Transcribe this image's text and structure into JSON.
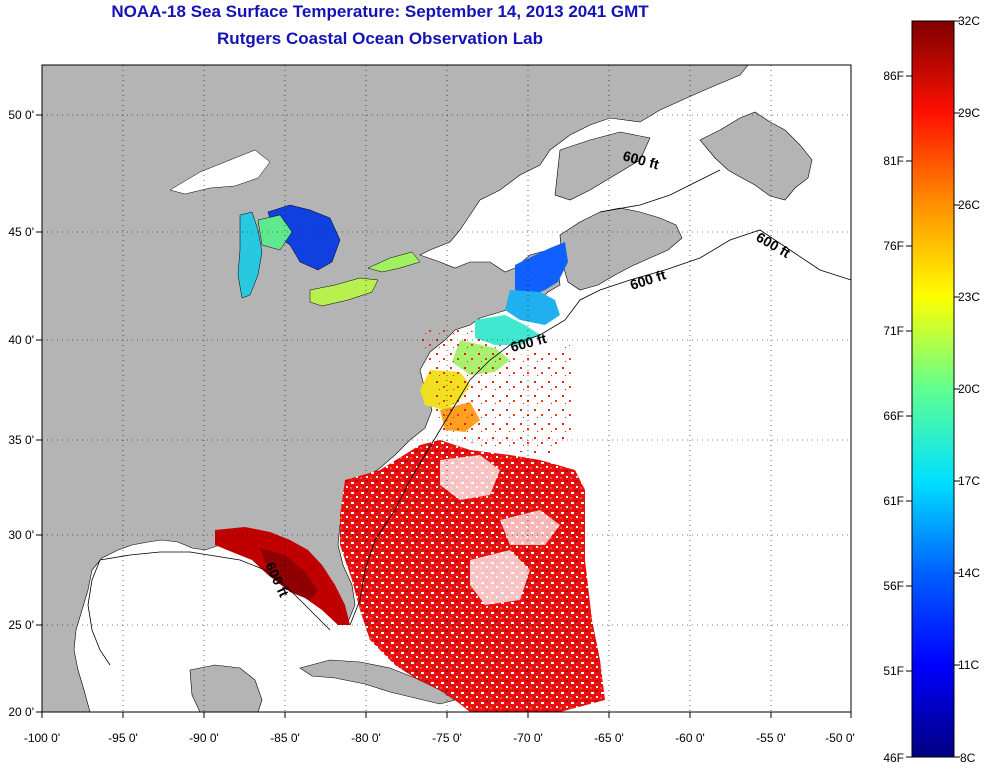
{
  "title": {
    "line1": "NOAA-18 Sea Surface Temperature:  September 14, 2013 2041 GMT",
    "line2": "Rutgers Coastal Ocean Observation Lab"
  },
  "x_ticks": [
    "-100 0'",
    "-95 0'",
    "-90 0'",
    "-85 0'",
    "-80 0'",
    "-75 0'",
    "-70 0'",
    "-65 0'",
    "-60 0'",
    "-55 0'",
    "-50 0'"
  ],
  "y_ticks": [
    "20 0'",
    "25 0'",
    "30 0'",
    "35 0'",
    "40 0'",
    "45 0'",
    "50 0'"
  ],
  "depth_labels": [
    "600 ft",
    "600 ft",
    "600 ft",
    "600 ft",
    "600 ft"
  ],
  "colorbar": {
    "celsius": [
      "32C",
      "29C",
      "26C",
      "23C",
      "20C",
      "17C",
      "14C",
      "11C",
      "8C"
    ],
    "fahrenheit": [
      "86F",
      "81F",
      "76F",
      "71F",
      "66F",
      "61F",
      "56F",
      "51F",
      "46F"
    ],
    "min_c": 8,
    "max_c": 32,
    "colors": [
      "#00007f",
      "#0000ff",
      "#0080ff",
      "#00ffff",
      "#80ff80",
      "#ffff00",
      "#ff8000",
      "#ff0000",
      "#7f0000"
    ]
  },
  "colors": {
    "land": "#b4b4b4",
    "water_nodata": "#ffffff",
    "title": "#1414b4"
  }
}
